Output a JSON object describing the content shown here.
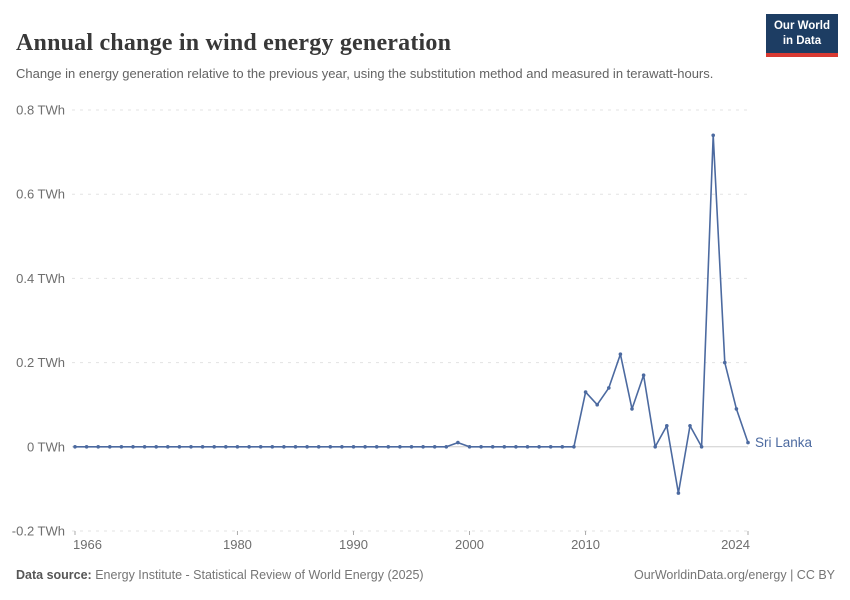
{
  "header": {
    "title": "Annual change in wind energy generation",
    "subtitle": "Change in energy generation relative to the previous year, using the substitution method and measured in terawatt-hours.",
    "logo": {
      "line1": "Our World",
      "line2": "in Data"
    }
  },
  "chart_data": {
    "type": "line",
    "title": "Annual change in wind energy generation",
    "ylabel": "",
    "xlabel": "",
    "unit": "TWh",
    "xlim": [
      1966,
      2024
    ],
    "ylim": [
      -0.2,
      0.8
    ],
    "grid": "horizontal dashed gridlines, solid zero line",
    "legend_position": "label at end of line",
    "x": [
      1966,
      1967,
      1968,
      1969,
      1970,
      1971,
      1972,
      1973,
      1974,
      1975,
      1976,
      1977,
      1978,
      1979,
      1980,
      1981,
      1982,
      1983,
      1984,
      1985,
      1986,
      1987,
      1988,
      1989,
      1990,
      1991,
      1992,
      1993,
      1994,
      1995,
      1996,
      1997,
      1998,
      1999,
      2000,
      2001,
      2002,
      2003,
      2004,
      2005,
      2006,
      2007,
      2008,
      2009,
      2010,
      2011,
      2012,
      2013,
      2014,
      2015,
      2016,
      2017,
      2018,
      2019,
      2020,
      2021,
      2022,
      2023,
      2024
    ],
    "series": [
      {
        "name": "Sri Lanka",
        "color": "#4c6aa0",
        "values": [
          0,
          0,
          0,
          0,
          0,
          0,
          0,
          0,
          0,
          0,
          0,
          0,
          0,
          0,
          0,
          0,
          0,
          0,
          0,
          0,
          0,
          0,
          0,
          0,
          0,
          0,
          0,
          0,
          0,
          0,
          0,
          0,
          0,
          0.01,
          0,
          0,
          0,
          0,
          0,
          0,
          0,
          0,
          0,
          0,
          0.13,
          0.1,
          0.14,
          0.22,
          0.09,
          0.17,
          0,
          0.05,
          -0.11,
          0.05,
          0,
          0.74,
          0.2,
          0.09,
          0.01
        ]
      }
    ],
    "xticks": [
      {
        "v": 1966,
        "label": "1966"
      },
      {
        "v": 1980,
        "label": "1980"
      },
      {
        "v": 1990,
        "label": "1990"
      },
      {
        "v": 2000,
        "label": "2000"
      },
      {
        "v": 2010,
        "label": "2010"
      },
      {
        "v": 2024,
        "label": "2024"
      }
    ],
    "yticks": [
      {
        "v": 0.8,
        "label": "0.8 TWh"
      },
      {
        "v": 0.6,
        "label": "0.6 TWh"
      },
      {
        "v": 0.4,
        "label": "0.4 TWh"
      },
      {
        "v": 0.2,
        "label": "0.2 TWh"
      },
      {
        "v": 0,
        "label": "0 TWh"
      },
      {
        "v": -0.2,
        "label": "-0.2 TWh"
      }
    ],
    "colors": {
      "gridline": "#e3e3e3",
      "zero_line": "#cdcdcd",
      "tick_mark": "#ababab",
      "axis_label": "#6e6e6e"
    }
  },
  "footer": {
    "datasource_label": "Data source:",
    "datasource_text": " Energy Institute - Statistical Review of World Energy (2025)",
    "right_text": "OurWorldinData.org/energy | CC BY"
  }
}
